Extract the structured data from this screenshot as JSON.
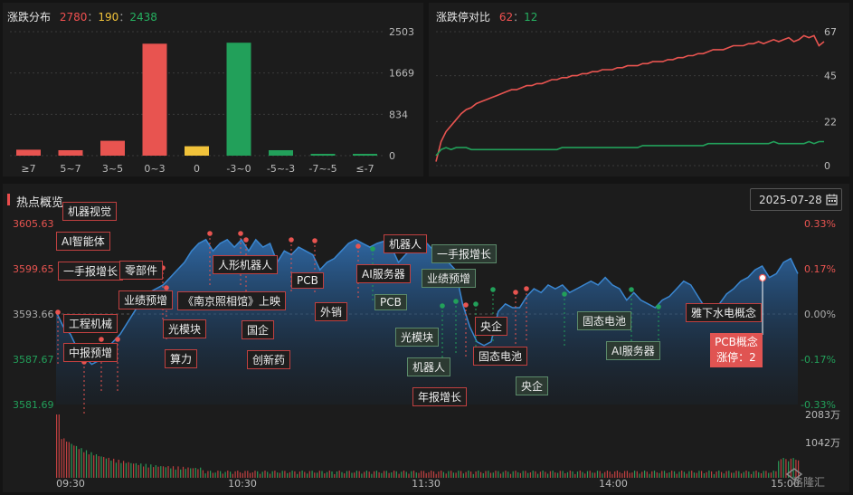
{
  "distribution": {
    "title": "涨跌分布",
    "up": "2780",
    "flat": "190",
    "down": "2438",
    "sep": "：",
    "y_ticks": [
      "2503",
      "1669",
      "834",
      "0"
    ],
    "chart_data": {
      "type": "bar",
      "categories": [
        "≥7",
        "5~7",
        "3~5",
        "0~3",
        "0",
        "-3~0",
        "-5~-3",
        "-7~-5",
        "≤-7"
      ],
      "values": [
        120,
        110,
        300,
        2260,
        190,
        2280,
        110,
        30,
        20
      ],
      "colors": [
        "#e85450",
        "#e85450",
        "#e85450",
        "#e85450",
        "#f0c23a",
        "#22a05a",
        "#22a05a",
        "#22a05a",
        "#22a05a"
      ],
      "ylim": [
        0,
        2503
      ]
    }
  },
  "limit": {
    "title": "涨跌停对比",
    "up": "62",
    "down": "12",
    "sep": "：",
    "y_ticks": [
      "67",
      "45",
      "22",
      "0"
    ],
    "chart_data": {
      "type": "line",
      "ylim": [
        0,
        67
      ],
      "series": [
        {
          "color": "#e85450",
          "values": [
            2,
            12,
            17,
            20,
            23,
            26,
            28,
            29,
            31,
            32,
            33,
            34,
            35,
            36,
            37,
            38,
            38,
            39,
            40,
            40,
            41,
            41,
            42,
            43,
            43,
            44,
            44,
            45,
            45,
            46,
            46,
            47,
            47,
            48,
            48,
            48,
            49,
            49,
            50,
            50,
            50,
            51,
            51,
            52,
            52,
            52,
            53,
            53,
            54,
            54,
            55,
            55,
            56,
            56,
            57,
            58,
            58,
            58,
            59,
            60,
            60,
            60,
            61,
            61,
            62,
            61,
            62,
            63,
            62,
            63,
            64,
            62,
            63,
            65,
            64,
            65,
            60,
            62
          ]
        },
        {
          "color": "#22a05a",
          "values": [
            5,
            8,
            9,
            8,
            9,
            9,
            9,
            8,
            8,
            8,
            8,
            8,
            8,
            8,
            8,
            8,
            8,
            8,
            8,
            8,
            8,
            8,
            8,
            8,
            8,
            9,
            9,
            9,
            9,
            9,
            9,
            9,
            9,
            9,
            9,
            9,
            9,
            9,
            9,
            9,
            9,
            10,
            10,
            10,
            10,
            10,
            10,
            10,
            10,
            10,
            10,
            10,
            10,
            10,
            11,
            11,
            11,
            11,
            11,
            11,
            11,
            11,
            11,
            11,
            11,
            11,
            11,
            12,
            11,
            11,
            11,
            11,
            11,
            11,
            12,
            11,
            12,
            12
          ]
        }
      ]
    }
  },
  "hot": {
    "title": "热点概览",
    "date": "2025-07-28",
    "left_ticks": [
      "3605.63",
      "3599.65",
      "3593.66",
      "3587.67",
      "3581.69"
    ],
    "right_ticks": [
      "0.33%",
      "0.17%",
      "0.00%",
      "-0.17%",
      "-0.33%"
    ],
    "vol_ticks": [
      "2083万",
      "1042万"
    ],
    "time_ticks": [
      "09:30",
      "10:30",
      "11:30",
      "14:00",
      "15:00"
    ],
    "watermark": "格隆汇",
    "tooltip": {
      "line1": "PCB概念",
      "line2": "涨停：2"
    },
    "chart_data": {
      "type": "area",
      "ylim": [
        3581.69,
        3605.63
      ],
      "index_values": [
        3594,
        3592,
        3591,
        3589,
        3588,
        3587,
        3587.5,
        3589,
        3590,
        3591,
        3592.5,
        3594,
        3595.5,
        3596.5,
        3597,
        3597.5,
        3598.5,
        3599.5,
        3600.5,
        3602,
        3603,
        3603.5,
        3602,
        3603,
        3603.5,
        3602.5,
        3603.5,
        3602,
        3603.5,
        3602.5,
        3603,
        3600.5,
        3602,
        3601.5,
        3602.5,
        3602,
        3601.5,
        3599.5,
        3600.5,
        3601,
        3602,
        3603,
        3603.5,
        3603,
        3602.5,
        3603,
        3603.3,
        3602.5,
        3600.5,
        3601.5,
        3602.5,
        3602.5,
        3603,
        3602,
        3601.5,
        3600.5,
        3599.5,
        3595,
        3592,
        3590,
        3589.5,
        3590,
        3594,
        3595,
        3594.5,
        3594.5,
        3596,
        3597,
        3596.5,
        3597.5,
        3597,
        3597.5,
        3596.5,
        3597,
        3597.5,
        3598,
        3597.5,
        3598.5,
        3597.5,
        3597,
        3595.5,
        3596.5,
        3595.5,
        3595,
        3594.5,
        3595.5,
        3596,
        3597,
        3598,
        3597.5,
        3596,
        3594.5,
        3594.2,
        3595,
        3596.3,
        3597,
        3598,
        3598.5,
        3599.5,
        3600,
        3598.5,
        3599,
        3600.5,
        3601,
        3599
      ]
    },
    "labels": [
      {
        "text": "机器视觉",
        "dark": false
      },
      {
        "text": "AI智能体",
        "dark": false
      },
      {
        "text": "一手报增长",
        "dark": false
      },
      {
        "text": "零部件",
        "dark": false
      },
      {
        "text": "业绩预增",
        "dark": false
      },
      {
        "text": "工程机械",
        "dark": false
      },
      {
        "text": "中报预增",
        "dark": false
      },
      {
        "text": "《南京照相馆》上映",
        "dark": false
      },
      {
        "text": "人形机器人",
        "dark": false
      },
      {
        "text": "光模块",
        "dark": false
      },
      {
        "text": "算力",
        "dark": false
      },
      {
        "text": "国企",
        "dark": false
      },
      {
        "text": "创新药",
        "dark": false
      },
      {
        "text": "PCB",
        "dark": false
      },
      {
        "text": "外销",
        "dark": false
      },
      {
        "text": "机器人",
        "dark": false
      },
      {
        "text": "AI服务器",
        "dark": false
      },
      {
        "text": "PCB",
        "dark": true
      },
      {
        "text": "一手报增长",
        "dark": true
      },
      {
        "text": "业绩预增",
        "dark": true
      },
      {
        "text": "光模块",
        "dark": true
      },
      {
        "text": "机器人",
        "dark": true
      },
      {
        "text": "年报增长",
        "dark": false
      },
      {
        "text": "央企",
        "dark": false
      },
      {
        "text": "固态电池",
        "dark": false
      },
      {
        "text": "央企",
        "dark": true
      },
      {
        "text": "固态电池",
        "dark": true
      },
      {
        "text": "AI服务器",
        "dark": true
      },
      {
        "text": "雅下水电概念",
        "dark": false
      }
    ]
  }
}
